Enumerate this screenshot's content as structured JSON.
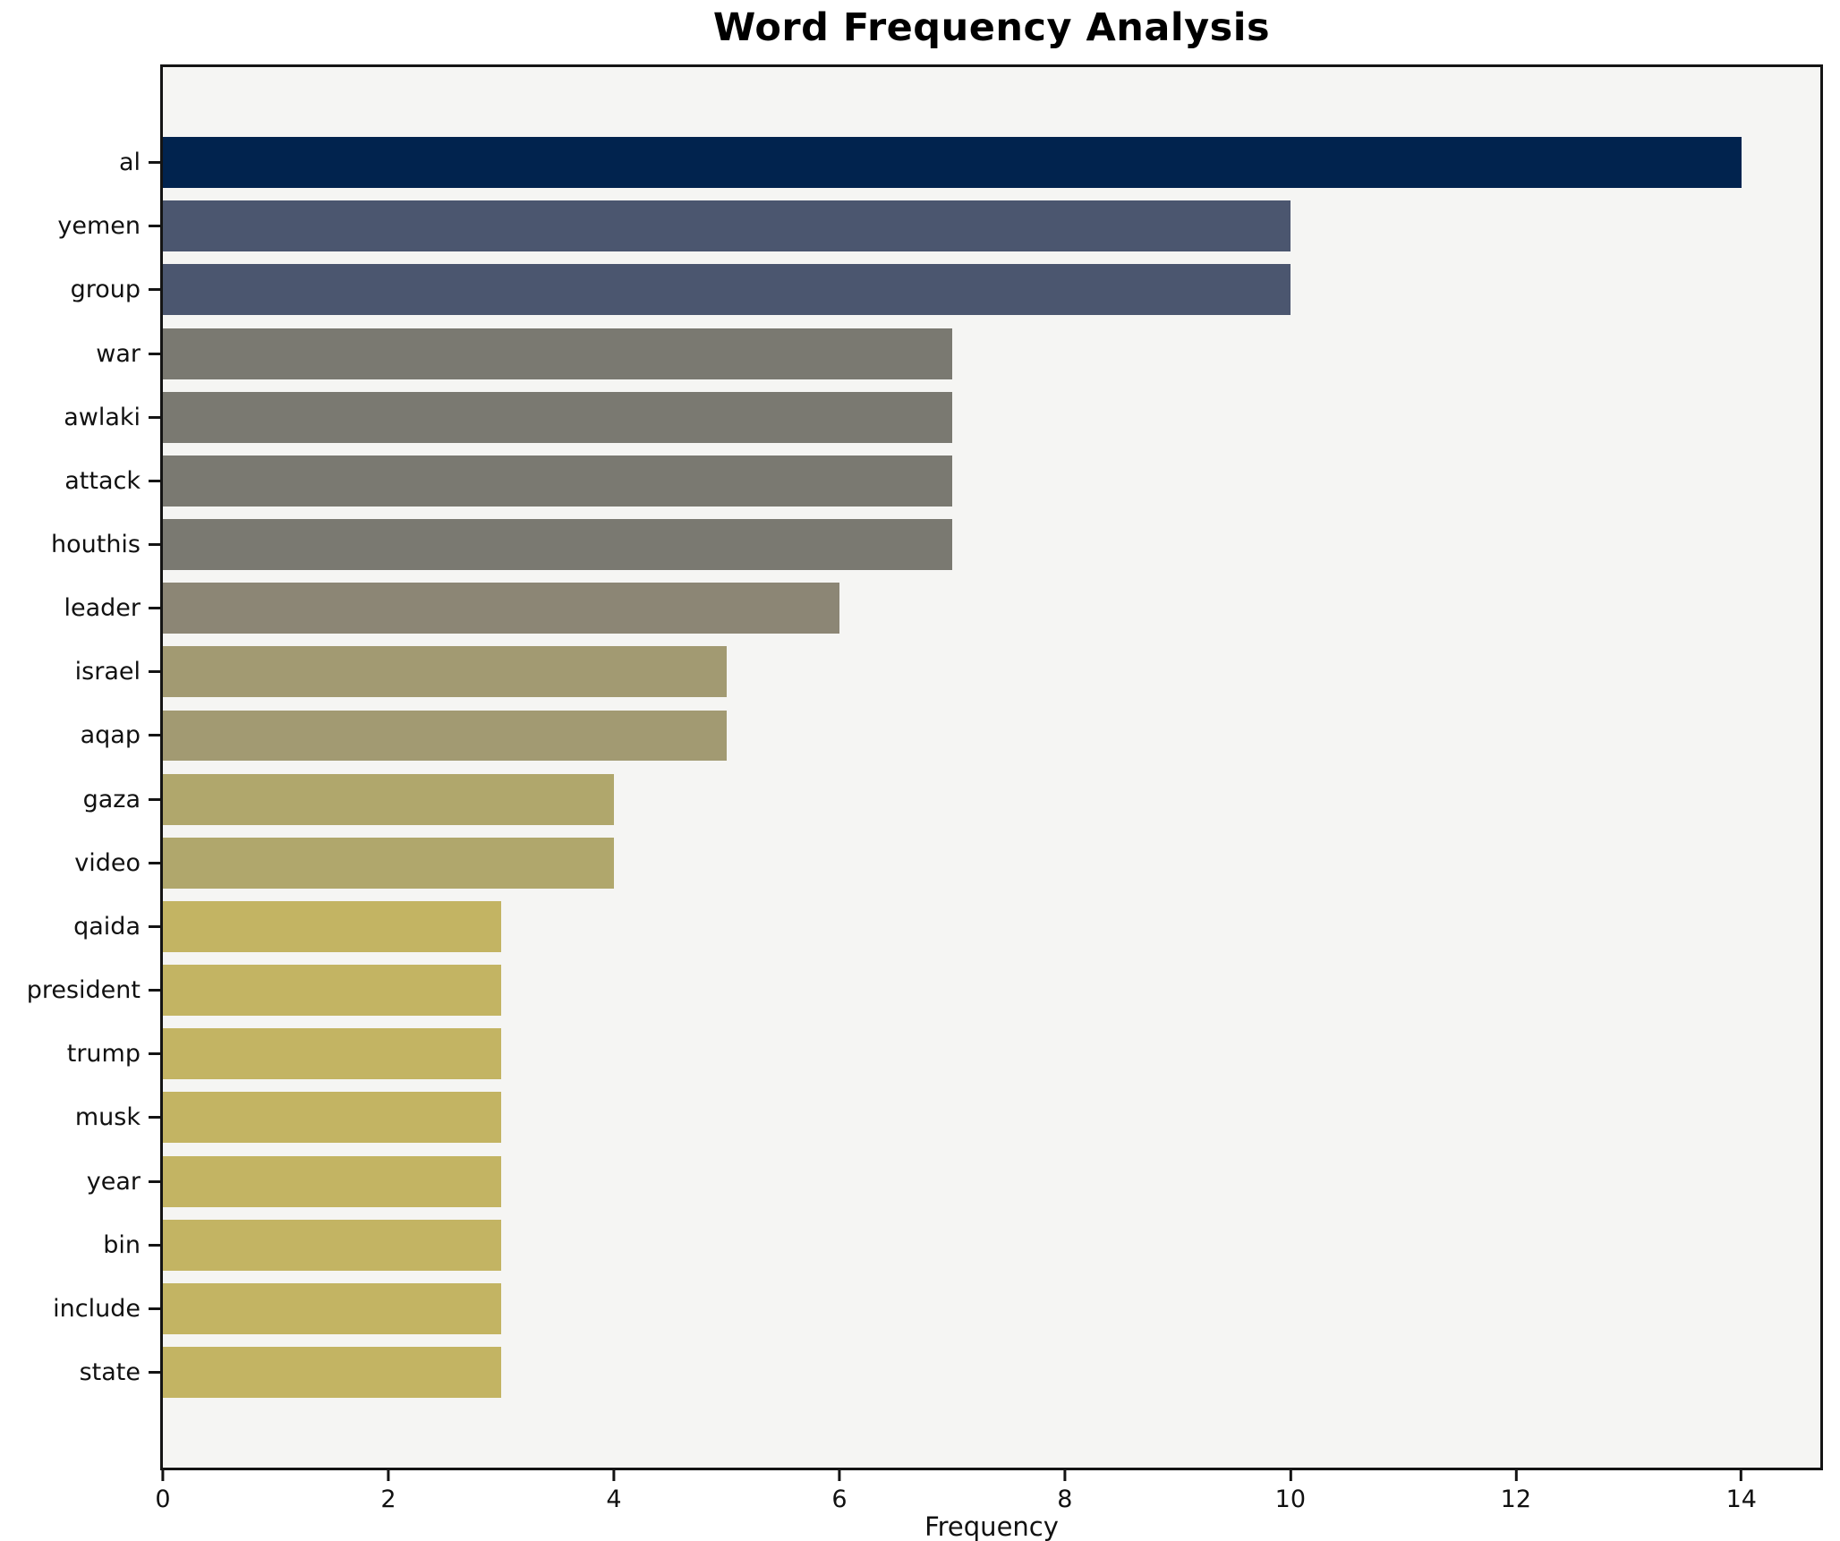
{
  "header": {
    "title": "Word Frequency Analysis"
  },
  "axes": {
    "x_axis_label": "Frequency"
  },
  "chart_data": {
    "type": "bar",
    "orientation": "horizontal",
    "title": "Word Frequency Analysis",
    "xlabel": "Frequency",
    "ylabel": "",
    "categories": [
      "al",
      "yemen",
      "group",
      "war",
      "awlaki",
      "attack",
      "houthis",
      "leader",
      "israel",
      "aqap",
      "gaza",
      "video",
      "qaida",
      "president",
      "trump",
      "musk",
      "year",
      "bin",
      "include",
      "state"
    ],
    "values": [
      14,
      10,
      10,
      7,
      7,
      7,
      7,
      6,
      5,
      5,
      4,
      4,
      3,
      3,
      3,
      3,
      3,
      3,
      3,
      3
    ],
    "bar_colors": [
      "#01234e",
      "#4b566f",
      "#4b566f",
      "#7a7971",
      "#7a7971",
      "#7a7971",
      "#7a7971",
      "#8c8675",
      "#a29a72",
      "#a29a72",
      "#b0a76c",
      "#b0a76c",
      "#c3b463",
      "#c3b463",
      "#c3b463",
      "#c3b463",
      "#c3b463",
      "#c3b463",
      "#c3b463",
      "#c3b463"
    ],
    "x_ticks": [
      0,
      2,
      4,
      6,
      8,
      10,
      12,
      14
    ],
    "xlim": [
      0,
      14.7
    ],
    "grid": false,
    "legend": null,
    "plot_background": "#f5f5f3",
    "figure_background": "#ffffff",
    "spine_color": "#141414",
    "text_color": "#111111"
  }
}
